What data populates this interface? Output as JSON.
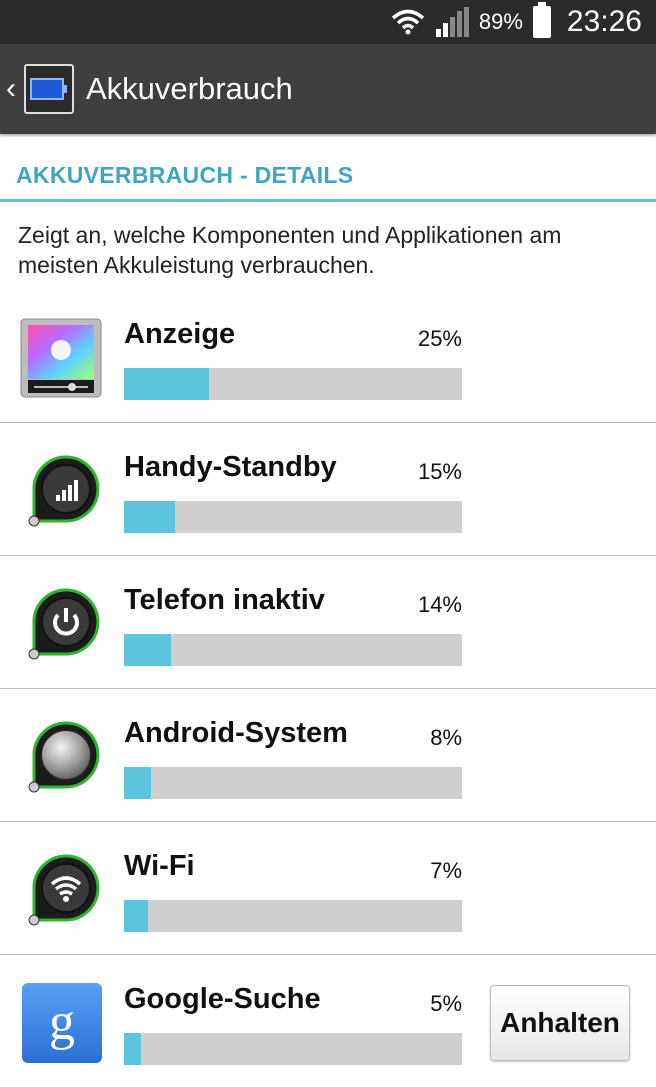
{
  "status_bar": {
    "battery_percent": "89%",
    "time": "23:26"
  },
  "action_bar": {
    "title": "Akkuverbrauch"
  },
  "section_header": "AKKUVERBRAUCH - DETAILS",
  "description": "Zeigt an, welche Komponenten und Applikationen am meisten Akkuleistung verbrauchen.",
  "items": [
    {
      "name": "Anzeige",
      "percent_label": "25%",
      "percent": 25,
      "icon": "display-icon"
    },
    {
      "name": "Handy-Standby",
      "percent_label": "15%",
      "percent": 15,
      "icon": "signal-icon"
    },
    {
      "name": "Telefon inaktiv",
      "percent_label": "14%",
      "percent": 14,
      "icon": "power-icon"
    },
    {
      "name": "Android-System",
      "percent_label": "8%",
      "percent": 8,
      "icon": "android-system-icon"
    },
    {
      "name": "Wi-Fi",
      "percent_label": "7%",
      "percent": 7,
      "icon": "wifi-icon"
    },
    {
      "name": "Google-Suche",
      "percent_label": "5%",
      "percent": 5,
      "icon": "google-search-icon",
      "action": "Anhalten"
    }
  ],
  "colors": {
    "accent": "#3fa6c0",
    "bar_fill": "#5dc4de",
    "bar_track": "#cfcfcf"
  }
}
